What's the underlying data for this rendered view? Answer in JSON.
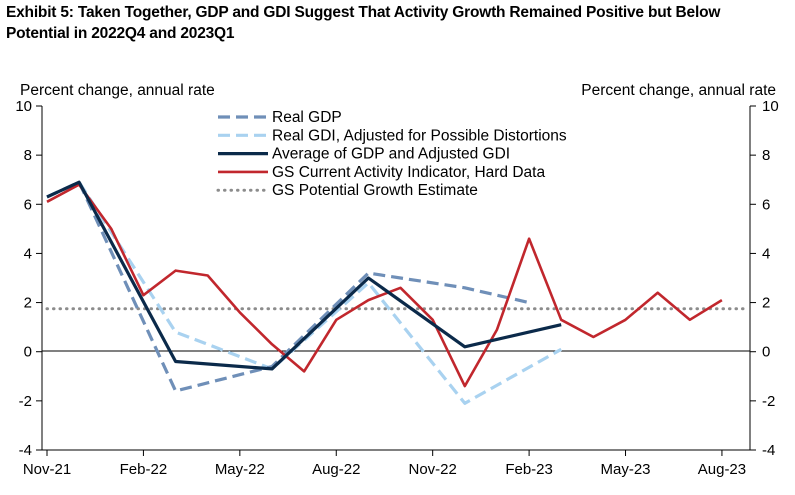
{
  "chart_data": {
    "type": "line",
    "title": "Exhibit 5: Taken Together, GDP and GDI Suggest That Activity Growth Remained Positive but Below Potential in 2022Q4 and 2023Q1",
    "ylabel_left": "Percent change, annual rate",
    "ylabel_right": "Percent change, annual rate",
    "ylim": [
      -4,
      10
    ],
    "yticks": [
      "10",
      "8",
      "6",
      "4",
      "2",
      "0",
      "-2",
      "-4"
    ],
    "ytick_values": [
      10,
      8,
      6,
      4,
      2,
      0,
      -2,
      -4
    ],
    "xlim": [
      "2021-11",
      "2023-08"
    ],
    "xticks": [
      "Nov-21",
      "Feb-22",
      "May-22",
      "Aug-22",
      "Nov-22",
      "Feb-23",
      "May-23",
      "Aug-23"
    ],
    "xtick_dates": [
      "2021-11",
      "2022-02",
      "2022-05",
      "2022-08",
      "2022-11",
      "2023-02",
      "2023-05",
      "2023-08"
    ],
    "legend_position": "top-center",
    "series": [
      {
        "name": "Real GDP",
        "style": "dashed",
        "color": "#6f8fb8",
        "points": [
          [
            "2021-11",
            6.3
          ],
          [
            "2021-12",
            6.9
          ],
          [
            "2022-03",
            -1.6
          ],
          [
            "2022-06",
            -0.6
          ],
          [
            "2022-09",
            3.2
          ],
          [
            "2022-12",
            2.6
          ],
          [
            "2023-02",
            2.0
          ]
        ]
      },
      {
        "name": "Real GDI, Adjusted for Possible Distortions",
        "style": "dashed",
        "color": "#a9d2f0",
        "points": [
          [
            "2021-11",
            6.3
          ],
          [
            "2021-12",
            6.9
          ],
          [
            "2022-03",
            0.8
          ],
          [
            "2022-06",
            -0.7
          ],
          [
            "2022-09",
            2.8
          ],
          [
            "2022-12",
            -2.1
          ],
          [
            "2023-03",
            0.1
          ]
        ]
      },
      {
        "name": "Average of GDP and Adjusted GDI",
        "style": "solid-thick",
        "color": "#0b2a4a",
        "points": [
          [
            "2021-11",
            6.3
          ],
          [
            "2021-12",
            6.9
          ],
          [
            "2022-03",
            -0.4
          ],
          [
            "2022-06",
            -0.7
          ],
          [
            "2022-09",
            3.0
          ],
          [
            "2022-12",
            0.2
          ],
          [
            "2023-03",
            1.1
          ]
        ]
      },
      {
        "name": "GS Current Activity Indicator, Hard Data",
        "style": "solid",
        "color": "#c1272d",
        "points": [
          [
            "2021-11",
            6.1
          ],
          [
            "2021-12",
            6.8
          ],
          [
            "2022-01",
            5.0
          ],
          [
            "2022-02",
            2.3
          ],
          [
            "2022-03",
            3.3
          ],
          [
            "2022-04",
            3.1
          ],
          [
            "2022-05",
            1.6
          ],
          [
            "2022-06",
            0.3
          ],
          [
            "2022-07",
            -0.8
          ],
          [
            "2022-08",
            1.3
          ],
          [
            "2022-09",
            2.1
          ],
          [
            "2022-10",
            2.6
          ],
          [
            "2022-11",
            1.3
          ],
          [
            "2022-12",
            -1.4
          ],
          [
            "2023-01",
            0.9
          ],
          [
            "2023-02",
            4.6
          ],
          [
            "2023-03",
            1.3
          ],
          [
            "2023-04",
            0.6
          ],
          [
            "2023-05",
            1.3
          ],
          [
            "2023-06",
            2.4
          ],
          [
            "2023-07",
            1.3
          ],
          [
            "2023-08",
            2.1
          ]
        ]
      },
      {
        "name": "GS Potential Growth Estimate",
        "style": "dotted",
        "color": "#8c8c8c",
        "points": [
          [
            "2021-11",
            1.75
          ],
          [
            "2023-09",
            1.75
          ]
        ]
      }
    ]
  }
}
